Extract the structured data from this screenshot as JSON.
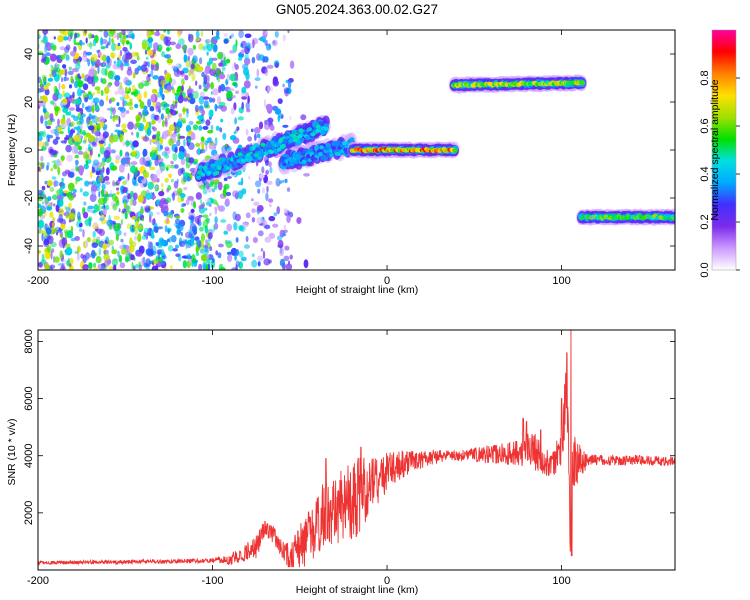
{
  "title": "GN05.2024.363.00.02.G27",
  "colorbar": {
    "label": "Normalized spectral amplitude",
    "ticks": [
      "0.0",
      "0.2",
      "0.4",
      "0.6",
      "0.8"
    ],
    "tick_values": [
      0.0,
      0.2,
      0.4,
      0.6,
      0.8
    ],
    "range": [
      0,
      1
    ],
    "colors": [
      "#ffffff",
      "#cc99ff",
      "#7b2bea",
      "#4030ff",
      "#00aaff",
      "#00e0e0",
      "#00e000",
      "#a0e000",
      "#ffe000",
      "#ff8000",
      "#ff0000",
      "#ff00a0"
    ]
  },
  "chart_data": [
    {
      "type": "heatmap",
      "name": "spectrogram",
      "xlabel": "Height of straight line (km)",
      "ylabel": "Frequency (Hz)",
      "xlim": [
        -200,
        165
      ],
      "ylim": [
        -50,
        50
      ],
      "xticks": [
        -200,
        -100,
        0,
        100
      ],
      "xtick_labels": [
        "-200",
        "-100",
        "0",
        "100"
      ],
      "yticks": [
        -40,
        -20,
        0,
        20,
        40
      ],
      "ytick_labels": [
        "-40",
        "-20",
        "0",
        "20",
        "40"
      ],
      "noise_region_x": [
        -200,
        -55
      ],
      "ridges": [
        {
          "x_start": -108,
          "x_end": -35,
          "y_start": -10,
          "y_end": 10,
          "amplitude": 0.45
        },
        {
          "x_start": -60,
          "x_end": -20,
          "y_start": -5,
          "y_end": 2,
          "amplitude": 0.4
        },
        {
          "x_start": -20,
          "x_end": 39,
          "y_start": 0,
          "y_end": 0,
          "amplitude": 0.85
        },
        {
          "x_start": 38,
          "x_end": 112,
          "y_start": 27,
          "y_end": 28,
          "amplitude": 0.7
        },
        {
          "x_start": 111,
          "x_end": 165,
          "y_start": -28,
          "y_end": -28,
          "amplitude": 0.6
        }
      ]
    },
    {
      "type": "line",
      "name": "snr",
      "xlabel": "Height of straight line (km)",
      "ylabel": "SNR (10 * v/v)",
      "xlim": [
        -200,
        165
      ],
      "ylim": [
        0,
        8400
      ],
      "xticks": [
        -200,
        -100,
        0,
        100
      ],
      "xtick_labels": [
        "-200",
        "-100",
        "0",
        "100"
      ],
      "yticks": [
        2000,
        4000,
        6000,
        8000
      ],
      "ytick_labels": [
        "2000",
        "4000",
        "6000",
        "8000"
      ],
      "color": "#ee3333",
      "envelope": {
        "x": [
          -200,
          -120,
          -90,
          -75,
          -70,
          -65,
          -60,
          -55,
          -45,
          -35,
          -20,
          -10,
          0,
          10,
          20,
          25,
          40,
          60,
          75,
          80,
          85,
          90,
          95,
          100,
          103,
          104,
          105,
          106,
          108,
          110,
          120,
          140,
          165
        ],
        "y": [
          250,
          300,
          350,
          800,
          1500,
          1200,
          700,
          400,
          1200,
          2000,
          2400,
          2900,
          3400,
          3700,
          3850,
          3950,
          4000,
          4050,
          4100,
          4200,
          4150,
          3800,
          3700,
          4300,
          6500,
          4000,
          1500,
          4000,
          3700,
          3800,
          3850,
          3850,
          3800
        ]
      },
      "jitter": {
        "x": [
          -200,
          -100,
          -75,
          -60,
          -50,
          -20,
          0,
          20,
          40,
          75,
          85,
          95,
          105,
          115,
          165
        ],
        "y": [
          60,
          80,
          400,
          300,
          900,
          1500,
          700,
          300,
          180,
          450,
          700,
          400,
          1200,
          200,
          150
        ]
      },
      "spikes": [
        {
          "x": 78,
          "y": 5300
        },
        {
          "x": 80,
          "y": 5200
        },
        {
          "x": 88,
          "y": 4900
        },
        {
          "x": 100,
          "y": 6000
        },
        {
          "x": 103,
          "y": 7600
        },
        {
          "x": 105.5,
          "y": 8400
        },
        {
          "x": 105.8,
          "y": 500
        },
        {
          "x": -15,
          "y": 4300
        },
        {
          "x": -35,
          "y": 3900
        },
        {
          "x": -70,
          "y": 1700
        }
      ]
    }
  ]
}
